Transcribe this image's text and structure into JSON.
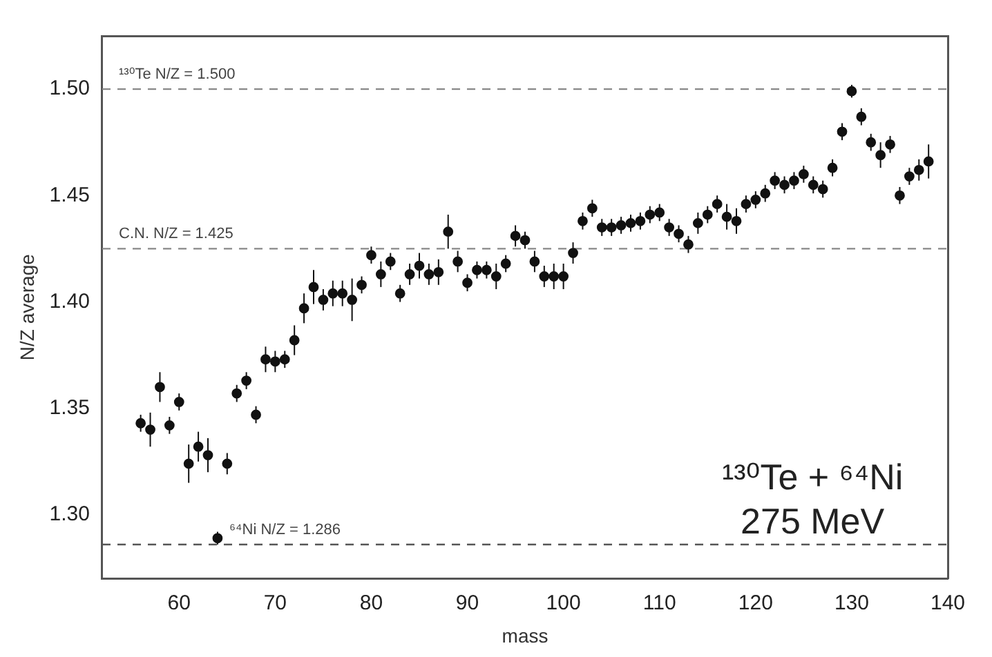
{
  "chart_data": {
    "type": "scatter",
    "xlabel": "mass",
    "ylabel": "N/Z average",
    "xlim": [
      52,
      140
    ],
    "xticks": [
      60,
      70,
      80,
      90,
      100,
      110,
      120,
      130,
      140
    ],
    "ylim": [
      1.27,
      1.525
    ],
    "yticks": [
      {
        "value": 1.3,
        "label": "1.30"
      },
      {
        "value": 1.35,
        "label": "1.35"
      },
      {
        "value": 1.4,
        "label": "1.40"
      },
      {
        "value": 1.45,
        "label": "1.45"
      },
      {
        "value": 1.5,
        "label": "1.50"
      }
    ],
    "grid": false,
    "legend": false,
    "marker": "circle",
    "series": [
      {
        "color": "#111111",
        "x": [
          56,
          57,
          58,
          59,
          60,
          61,
          62,
          63,
          64,
          65,
          66,
          67,
          68,
          69,
          70,
          71,
          72,
          73,
          74,
          75,
          76,
          77,
          78,
          79,
          80,
          81,
          82,
          83,
          84,
          85,
          86,
          87,
          88,
          89,
          90,
          91,
          92,
          93,
          94,
          95,
          96,
          97,
          98,
          99,
          100,
          101,
          102,
          103,
          104,
          105,
          106,
          107,
          108,
          109,
          110,
          111,
          112,
          113,
          114,
          115,
          116,
          117,
          118,
          119,
          120,
          121,
          122,
          123,
          124,
          125,
          126,
          127,
          128,
          129,
          130,
          131,
          132,
          133,
          134,
          135,
          136,
          137,
          138
        ],
        "values": [
          1.343,
          1.34,
          1.36,
          1.342,
          1.353,
          1.324,
          1.332,
          1.328,
          1.289,
          1.324,
          1.357,
          1.363,
          1.347,
          1.373,
          1.372,
          1.373,
          1.382,
          1.397,
          1.407,
          1.401,
          1.404,
          1.404,
          1.401,
          1.408,
          1.422,
          1.413,
          1.419,
          1.404,
          1.413,
          1.417,
          1.413,
          1.414,
          1.433,
          1.419,
          1.409,
          1.415,
          1.415,
          1.412,
          1.418,
          1.431,
          1.429,
          1.419,
          1.412,
          1.412,
          1.412,
          1.423,
          1.438,
          1.444,
          1.435,
          1.435,
          1.436,
          1.437,
          1.438,
          1.441,
          1.442,
          1.435,
          1.432,
          1.427,
          1.437,
          1.441,
          1.446,
          1.44,
          1.438,
          1.446,
          1.448,
          1.451,
          1.457,
          1.455,
          1.457,
          1.46,
          1.455,
          1.453,
          1.463,
          1.48,
          1.499,
          1.487,
          1.475,
          1.469,
          1.474,
          1.45,
          1.459,
          1.462,
          1.466
        ],
        "errors": [
          0.004,
          0.008,
          0.007,
          0.004,
          0.004,
          0.009,
          0.007,
          0.008,
          0.003,
          0.005,
          0.004,
          0.004,
          0.004,
          0.006,
          0.005,
          0.004,
          0.007,
          0.007,
          0.008,
          0.005,
          0.006,
          0.006,
          0.01,
          0.004,
          0.004,
          0.006,
          0.004,
          0.004,
          0.005,
          0.006,
          0.005,
          0.006,
          0.008,
          0.005,
          0.004,
          0.004,
          0.004,
          0.006,
          0.004,
          0.005,
          0.004,
          0.005,
          0.005,
          0.006,
          0.006,
          0.005,
          0.004,
          0.004,
          0.004,
          0.004,
          0.004,
          0.004,
          0.004,
          0.004,
          0.004,
          0.004,
          0.004,
          0.004,
          0.005,
          0.004,
          0.004,
          0.006,
          0.006,
          0.004,
          0.004,
          0.004,
          0.004,
          0.004,
          0.004,
          0.004,
          0.004,
          0.004,
          0.004,
          0.004,
          0.003,
          0.004,
          0.004,
          0.006,
          0.004,
          0.004,
          0.004,
          0.005,
          0.008
        ]
      }
    ],
    "ref_lines": [
      {
        "axis": "y",
        "value": 1.5,
        "label": "¹³⁰Te N/Z = 1.500",
        "color": "#888888",
        "line_style": "dashed"
      },
      {
        "axis": "y",
        "value": 1.425,
        "label": "C.N. N/Z = 1.425",
        "color": "#888888",
        "line_style": "dashed"
      },
      {
        "axis": "y",
        "value": 1.286,
        "label": "⁶⁴Ni N/Z = 1.286",
        "color": "#555555",
        "line_style": "dashed"
      }
    ],
    "annotations": [
      "¹³⁰Te + ⁶⁴Ni",
      "275 MeV"
    ]
  }
}
